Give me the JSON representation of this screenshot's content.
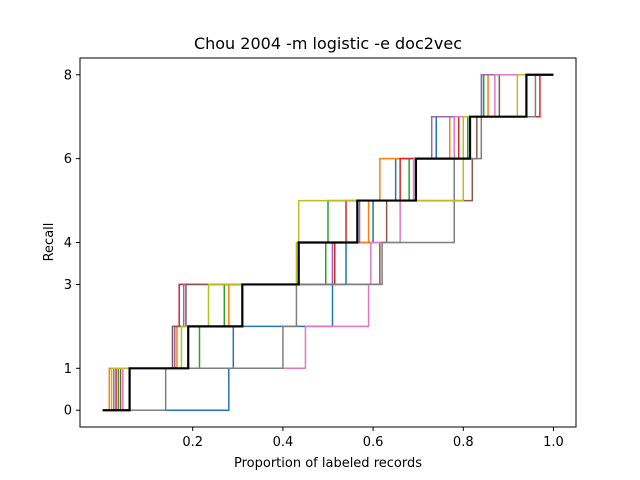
{
  "chart_data": {
    "type": "line",
    "title": "Chou 2004 -m logistic -e doc2vec",
    "xlabel": "Proportion of labeled records",
    "ylabel": "Recall",
    "xlim": [
      -0.05,
      1.05
    ],
    "ylim": [
      -0.4,
      8.4
    ],
    "xticks": [
      0.2,
      0.4,
      0.6,
      0.8,
      1.0
    ],
    "xtick_labels": [
      "0.2",
      "0.4",
      "0.6",
      "0.8",
      "1.0"
    ],
    "yticks": [
      0,
      1,
      3,
      4,
      6,
      8
    ],
    "ytick_labels": [
      "0",
      "1",
      "3",
      "4",
      "6",
      "8"
    ],
    "grid": false,
    "legend": "none",
    "series": [
      {
        "color": "#1f77b4",
        "steps": [
          [
            0.0,
            0
          ],
          [
            0.28,
            0
          ],
          [
            0.28,
            1
          ],
          [
            0.29,
            1
          ],
          [
            0.29,
            2
          ],
          [
            0.51,
            2
          ],
          [
            0.51,
            3
          ],
          [
            0.54,
            3
          ],
          [
            0.54,
            4
          ],
          [
            0.6,
            4
          ],
          [
            0.6,
            5
          ],
          [
            0.65,
            5
          ],
          [
            0.65,
            6
          ],
          [
            0.74,
            6
          ],
          [
            0.74,
            7
          ],
          [
            0.845,
            7
          ],
          [
            0.845,
            8
          ],
          [
            1.0,
            8
          ]
        ]
      },
      {
        "color": "#ff7f0e",
        "steps": [
          [
            0.0,
            0
          ],
          [
            0.015,
            0
          ],
          [
            0.015,
            1
          ],
          [
            0.165,
            1
          ],
          [
            0.165,
            2
          ],
          [
            0.28,
            2
          ],
          [
            0.28,
            3
          ],
          [
            0.51,
            3
          ],
          [
            0.51,
            4
          ],
          [
            0.59,
            4
          ],
          [
            0.59,
            5
          ],
          [
            0.615,
            5
          ],
          [
            0.615,
            6
          ],
          [
            0.77,
            6
          ],
          [
            0.77,
            7
          ],
          [
            0.855,
            7
          ],
          [
            0.855,
            8
          ],
          [
            1.0,
            8
          ]
        ]
      },
      {
        "color": "#2ca02c",
        "steps": [
          [
            0.0,
            0
          ],
          [
            0.035,
            0
          ],
          [
            0.035,
            1
          ],
          [
            0.215,
            1
          ],
          [
            0.215,
            2
          ],
          [
            0.27,
            2
          ],
          [
            0.27,
            3
          ],
          [
            0.495,
            3
          ],
          [
            0.495,
            4
          ],
          [
            0.5,
            4
          ],
          [
            0.5,
            5
          ],
          [
            0.68,
            5
          ],
          [
            0.68,
            6
          ],
          [
            0.81,
            6
          ],
          [
            0.81,
            7
          ],
          [
            0.845,
            7
          ],
          [
            0.845,
            8
          ],
          [
            1.0,
            8
          ]
        ]
      },
      {
        "color": "#d62728",
        "steps": [
          [
            0.0,
            0
          ],
          [
            0.03,
            0
          ],
          [
            0.03,
            1
          ],
          [
            0.16,
            1
          ],
          [
            0.16,
            2
          ],
          [
            0.17,
            2
          ],
          [
            0.17,
            3
          ],
          [
            0.515,
            3
          ],
          [
            0.515,
            4
          ],
          [
            0.54,
            4
          ],
          [
            0.54,
            5
          ],
          [
            0.66,
            5
          ],
          [
            0.66,
            6
          ],
          [
            0.79,
            6
          ],
          [
            0.79,
            7
          ],
          [
            0.97,
            7
          ],
          [
            0.97,
            8
          ],
          [
            1.0,
            8
          ]
        ]
      },
      {
        "color": "#9467bd",
        "steps": [
          [
            0.0,
            0
          ],
          [
            0.025,
            0
          ],
          [
            0.025,
            1
          ],
          [
            0.16,
            1
          ],
          [
            0.16,
            2
          ],
          [
            0.18,
            2
          ],
          [
            0.18,
            3
          ],
          [
            0.51,
            3
          ],
          [
            0.51,
            4
          ],
          [
            0.57,
            4
          ],
          [
            0.57,
            5
          ],
          [
            0.69,
            5
          ],
          [
            0.69,
            6
          ],
          [
            0.73,
            6
          ],
          [
            0.73,
            7
          ],
          [
            0.84,
            7
          ],
          [
            0.84,
            8
          ],
          [
            1.0,
            8
          ]
        ]
      },
      {
        "color": "#8c564b",
        "steps": [
          [
            0.0,
            0
          ],
          [
            0.04,
            0
          ],
          [
            0.04,
            1
          ],
          [
            0.155,
            1
          ],
          [
            0.155,
            2
          ],
          [
            0.185,
            2
          ],
          [
            0.185,
            3
          ],
          [
            0.615,
            3
          ],
          [
            0.615,
            4
          ],
          [
            0.63,
            4
          ],
          [
            0.63,
            5
          ],
          [
            0.82,
            5
          ],
          [
            0.82,
            6
          ],
          [
            0.83,
            6
          ],
          [
            0.83,
            7
          ],
          [
            0.88,
            7
          ],
          [
            0.88,
            8
          ],
          [
            1.0,
            8
          ]
        ]
      },
      {
        "color": "#e377c2",
        "steps": [
          [
            0.0,
            0
          ],
          [
            0.045,
            0
          ],
          [
            0.045,
            1
          ],
          [
            0.45,
            1
          ],
          [
            0.45,
            2
          ],
          [
            0.59,
            2
          ],
          [
            0.59,
            3
          ],
          [
            0.595,
            3
          ],
          [
            0.595,
            4
          ],
          [
            0.66,
            4
          ],
          [
            0.66,
            5
          ],
          [
            0.69,
            5
          ],
          [
            0.69,
            6
          ],
          [
            0.78,
            6
          ],
          [
            0.78,
            7
          ],
          [
            0.87,
            7
          ],
          [
            0.87,
            8
          ],
          [
            1.0,
            8
          ]
        ]
      },
      {
        "color": "#7f7f7f",
        "steps": [
          [
            0.0,
            0
          ],
          [
            0.14,
            0
          ],
          [
            0.14,
            1
          ],
          [
            0.4,
            1
          ],
          [
            0.4,
            2
          ],
          [
            0.43,
            2
          ],
          [
            0.43,
            3
          ],
          [
            0.62,
            3
          ],
          [
            0.62,
            4
          ],
          [
            0.78,
            4
          ],
          [
            0.78,
            5
          ],
          [
            0.78,
            5
          ],
          [
            0.78,
            6
          ],
          [
            0.84,
            6
          ],
          [
            0.84,
            7
          ],
          [
            0.96,
            7
          ],
          [
            0.96,
            8
          ],
          [
            1.0,
            8
          ]
        ]
      },
      {
        "color": "#bcbd22",
        "steps": [
          [
            0.0,
            0
          ],
          [
            0.02,
            0
          ],
          [
            0.02,
            1
          ],
          [
            0.175,
            1
          ],
          [
            0.175,
            2
          ],
          [
            0.235,
            2
          ],
          [
            0.235,
            3
          ],
          [
            0.43,
            3
          ],
          [
            0.43,
            4
          ],
          [
            0.435,
            4
          ],
          [
            0.435,
            5
          ],
          [
            0.8,
            5
          ],
          [
            0.8,
            6
          ],
          [
            0.8,
            6
          ],
          [
            0.8,
            7
          ],
          [
            0.92,
            7
          ],
          [
            0.92,
            8
          ],
          [
            1.0,
            8
          ]
        ]
      },
      {
        "color": "#000000",
        "width": 2.2,
        "steps": [
          [
            0.0,
            0
          ],
          [
            0.06,
            0
          ],
          [
            0.06,
            1
          ],
          [
            0.19,
            1
          ],
          [
            0.19,
            2
          ],
          [
            0.31,
            2
          ],
          [
            0.31,
            3
          ],
          [
            0.435,
            3
          ],
          [
            0.435,
            4
          ],
          [
            0.565,
            4
          ],
          [
            0.565,
            5
          ],
          [
            0.695,
            5
          ],
          [
            0.695,
            6
          ],
          [
            0.815,
            6
          ],
          [
            0.815,
            7
          ],
          [
            0.94,
            7
          ],
          [
            0.94,
            8
          ],
          [
            1.0,
            8
          ]
        ]
      }
    ]
  }
}
